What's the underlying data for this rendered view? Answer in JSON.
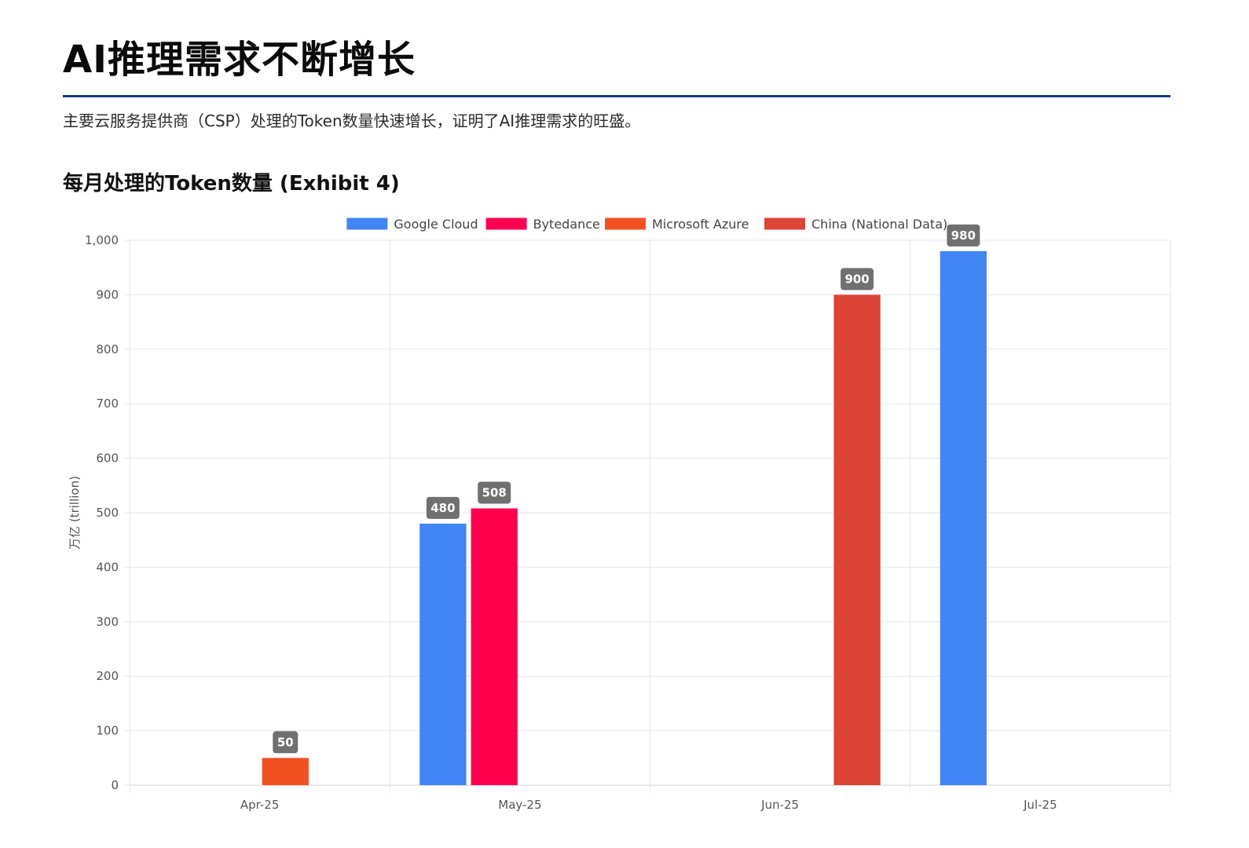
{
  "header": {
    "title": "AI推理需求不断增长",
    "subtitle": "主要云服务提供商（CSP）处理的Token数量快速增长，证明了AI推理需求的旺盛。"
  },
  "chart_heading": "每月处理的Token数量 (Exhibit 4)",
  "colors": {
    "title_rule": "#163a8c",
    "grid": "#e6e6e6",
    "data_label_bg": "#707070"
  },
  "chart_data": {
    "type": "bar",
    "title": "每月处理的Token数量 (Exhibit 4)",
    "categories": [
      "Apr-25",
      "May-25",
      "Jun-25",
      "Jul-25"
    ],
    "ylabel": "万亿 (trillion)",
    "xlabel": "",
    "ylim": [
      0,
      1000
    ],
    "yticks": [
      0,
      100,
      200,
      300,
      400,
      500,
      600,
      700,
      800,
      900,
      1000
    ],
    "ytick_labels": [
      "0",
      "100",
      "200",
      "300",
      "400",
      "500",
      "600",
      "700",
      "800",
      "900",
      "1,000"
    ],
    "grid": true,
    "legend_position": "top-center",
    "series": [
      {
        "name": "Google Cloud",
        "color": "#4285f4",
        "values": [
          null,
          480,
          null,
          980
        ]
      },
      {
        "name": "Bytedance",
        "color": "#ff0050",
        "values": [
          null,
          508,
          null,
          null
        ]
      },
      {
        "name": "Microsoft Azure",
        "color": "#f25022",
        "values": [
          50,
          null,
          null,
          null
        ]
      },
      {
        "name": "China (National Data)",
        "color": "#db4437",
        "values": [
          null,
          null,
          900,
          null
        ]
      }
    ]
  }
}
